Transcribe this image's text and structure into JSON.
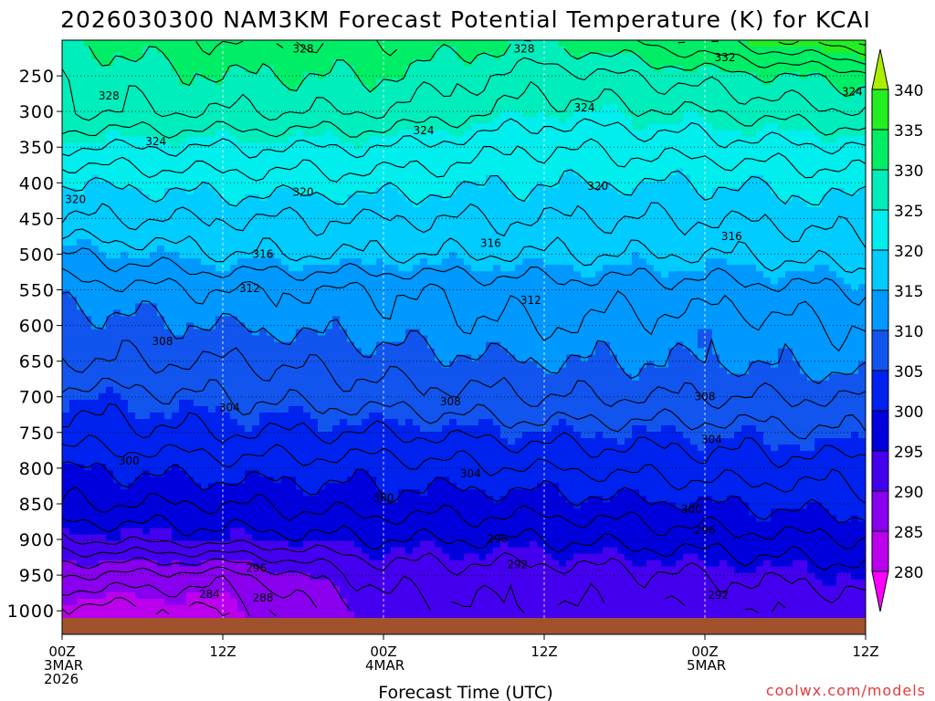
{
  "chart_data": {
    "type": "heatmap",
    "title": "2026030300 NAM3KM Forecast Potential Temperature (K) for KCAI",
    "xlabel": "Forecast Time (UTC)",
    "ylabel": "",
    "credit": "coolwx.com/models",
    "x_ticks": [
      {
        "hour": 0,
        "lines": [
          "00Z",
          "3MAR",
          "2026"
        ]
      },
      {
        "hour": 12,
        "lines": [
          "12Z"
        ]
      },
      {
        "hour": 24,
        "lines": [
          "00Z",
          "4MAR"
        ]
      },
      {
        "hour": 36,
        "lines": [
          "12Z"
        ]
      },
      {
        "hour": 48,
        "lines": [
          "00Z",
          "5MAR"
        ]
      },
      {
        "hour": 60,
        "lines": [
          "12Z"
        ]
      }
    ],
    "xlim_hours": [
      0,
      60
    ],
    "y_ticks": [
      250,
      300,
      350,
      400,
      450,
      500,
      550,
      600,
      650,
      700,
      750,
      800,
      850,
      900,
      950,
      1000
    ],
    "ylim_hpa": [
      200,
      1010
    ],
    "colorbar": {
      "levels": [
        280,
        285,
        290,
        295,
        300,
        305,
        310,
        315,
        320,
        325,
        330,
        335,
        340
      ],
      "colors": [
        "#ff00ff",
        "#bb00ee",
        "#8800ee",
        "#4400ee",
        "#0000dd",
        "#0022ee",
        "#1155ee",
        "#0099ff",
        "#00ccff",
        "#00eeee",
        "#00eebb",
        "#00ee66",
        "#22ee22",
        "#aaee00"
      ]
    },
    "isentrope_profiles": [
      {
        "hour": 0,
        "theta": [
          {
            "p": 1000,
            "k": 283
          },
          {
            "p": 950,
            "k": 288
          },
          {
            "p": 900,
            "k": 294
          },
          {
            "p": 850,
            "k": 298
          },
          {
            "p": 800,
            "k": 300
          },
          {
            "p": 750,
            "k": 303
          },
          {
            "p": 700,
            "k": 305
          },
          {
            "p": 650,
            "k": 308
          },
          {
            "p": 600,
            "k": 309
          },
          {
            "p": 550,
            "k": 311
          },
          {
            "p": 500,
            "k": 314
          },
          {
            "p": 450,
            "k": 318
          },
          {
            "p": 400,
            "k": 320
          },
          {
            "p": 350,
            "k": 324
          },
          {
            "p": 300,
            "k": 328
          },
          {
            "p": 250,
            "k": 328
          },
          {
            "p": 200,
            "k": 330
          }
        ]
      },
      {
        "hour": 12,
        "theta": [
          {
            "p": 1000,
            "k": 284
          },
          {
            "p": 950,
            "k": 287
          },
          {
            "p": 900,
            "k": 295
          },
          {
            "p": 850,
            "k": 298
          },
          {
            "p": 800,
            "k": 301
          },
          {
            "p": 750,
            "k": 304
          },
          {
            "p": 700,
            "k": 306
          },
          {
            "p": 650,
            "k": 308
          },
          {
            "p": 600,
            "k": 310
          },
          {
            "p": 550,
            "k": 312
          },
          {
            "p": 500,
            "k": 316
          },
          {
            "p": 450,
            "k": 318
          },
          {
            "p": 400,
            "k": 321
          },
          {
            "p": 350,
            "k": 324
          },
          {
            "p": 300,
            "k": 328
          },
          {
            "p": 250,
            "k": 330
          },
          {
            "p": 200,
            "k": 332
          }
        ]
      },
      {
        "hour": 24,
        "theta": [
          {
            "p": 1000,
            "k": 291
          },
          {
            "p": 950,
            "k": 293
          },
          {
            "p": 900,
            "k": 296
          },
          {
            "p": 850,
            "k": 299
          },
          {
            "p": 800,
            "k": 301
          },
          {
            "p": 750,
            "k": 304
          },
          {
            "p": 700,
            "k": 307
          },
          {
            "p": 650,
            "k": 309
          },
          {
            "p": 600,
            "k": 311
          },
          {
            "p": 550,
            "k": 312
          },
          {
            "p": 500,
            "k": 316
          },
          {
            "p": 450,
            "k": 318
          },
          {
            "p": 400,
            "k": 321
          },
          {
            "p": 350,
            "k": 324
          },
          {
            "p": 300,
            "k": 328
          },
          {
            "p": 250,
            "k": 330
          },
          {
            "p": 200,
            "k": 332
          }
        ]
      },
      {
        "hour": 36,
        "theta": [
          {
            "p": 1000,
            "k": 292
          },
          {
            "p": 950,
            "k": 293
          },
          {
            "p": 900,
            "k": 296
          },
          {
            "p": 850,
            "k": 299
          },
          {
            "p": 800,
            "k": 302
          },
          {
            "p": 750,
            "k": 305
          },
          {
            "p": 700,
            "k": 308
          },
          {
            "p": 650,
            "k": 310
          },
          {
            "p": 600,
            "k": 312
          },
          {
            "p": 550,
            "k": 313
          },
          {
            "p": 500,
            "k": 316
          },
          {
            "p": 450,
            "k": 318
          },
          {
            "p": 400,
            "k": 320
          },
          {
            "p": 350,
            "k": 322
          },
          {
            "p": 300,
            "k": 325
          },
          {
            "p": 250,
            "k": 327
          },
          {
            "p": 200,
            "k": 330
          }
        ]
      },
      {
        "hour": 48,
        "theta": [
          {
            "p": 1000,
            "k": 292
          },
          {
            "p": 950,
            "k": 294
          },
          {
            "p": 900,
            "k": 297
          },
          {
            "p": 850,
            "k": 300
          },
          {
            "p": 800,
            "k": 303
          },
          {
            "p": 750,
            "k": 305
          },
          {
            "p": 700,
            "k": 308
          },
          {
            "p": 650,
            "k": 310
          },
          {
            "p": 600,
            "k": 311
          },
          {
            "p": 550,
            "k": 313
          },
          {
            "p": 500,
            "k": 316
          },
          {
            "p": 450,
            "k": 318
          },
          {
            "p": 400,
            "k": 320
          },
          {
            "p": 350,
            "k": 323
          },
          {
            "p": 300,
            "k": 326
          },
          {
            "p": 250,
            "k": 329
          },
          {
            "p": 200,
            "k": 334
          }
        ]
      },
      {
        "hour": 60,
        "theta": [
          {
            "p": 1000,
            "k": 293
          },
          {
            "p": 950,
            "k": 295
          },
          {
            "p": 900,
            "k": 298
          },
          {
            "p": 850,
            "k": 301
          },
          {
            "p": 800,
            "k": 303
          },
          {
            "p": 750,
            "k": 306
          },
          {
            "p": 700,
            "k": 308
          },
          {
            "p": 650,
            "k": 311
          },
          {
            "p": 600,
            "k": 312
          },
          {
            "p": 550,
            "k": 314
          },
          {
            "p": 500,
            "k": 317
          },
          {
            "p": 450,
            "k": 319
          },
          {
            "p": 400,
            "k": 321
          },
          {
            "p": 350,
            "k": 324
          },
          {
            "p": 300,
            "k": 328
          },
          {
            "p": 250,
            "k": 331
          },
          {
            "p": 200,
            "k": 338
          }
        ]
      }
    ],
    "contour_labels": [
      {
        "value": "328",
        "hour": 18,
        "p": 212
      },
      {
        "value": "328",
        "hour": 34.5,
        "p": 212
      },
      {
        "value": "332",
        "hour": 49.5,
        "p": 224
      },
      {
        "value": "328",
        "hour": 3.5,
        "p": 278
      },
      {
        "value": "324",
        "hour": 59,
        "p": 272
      },
      {
        "value": "324",
        "hour": 39,
        "p": 295
      },
      {
        "value": "324",
        "hour": 27,
        "p": 327
      },
      {
        "value": "324",
        "hour": 7,
        "p": 342
      },
      {
        "value": "320",
        "hour": 1,
        "p": 423
      },
      {
        "value": "320",
        "hour": 18,
        "p": 413
      },
      {
        "value": "320",
        "hour": 40,
        "p": 405
      },
      {
        "value": "316",
        "hour": 32,
        "p": 485
      },
      {
        "value": "316",
        "hour": 50,
        "p": 475
      },
      {
        "value": "316",
        "hour": 15,
        "p": 500
      },
      {
        "value": "312",
        "hour": 14,
        "p": 548
      },
      {
        "value": "312",
        "hour": 35,
        "p": 565
      },
      {
        "value": "308",
        "hour": 7.5,
        "p": 622
      },
      {
        "value": "308",
        "hour": 29,
        "p": 707
      },
      {
        "value": "308",
        "hour": 48,
        "p": 700
      },
      {
        "value": "304",
        "hour": 12.5,
        "p": 715
      },
      {
        "value": "304",
        "hour": 48.5,
        "p": 760
      },
      {
        "value": "304",
        "hour": 30.5,
        "p": 808
      },
      {
        "value": "300",
        "hour": 5,
        "p": 790
      },
      {
        "value": "300",
        "hour": 24,
        "p": 842
      },
      {
        "value": "300",
        "hour": 47,
        "p": 858
      },
      {
        "value": "296",
        "hour": 14.5,
        "p": 940
      },
      {
        "value": "296",
        "hour": 32.5,
        "p": 899
      },
      {
        "value": "296",
        "hour": 48,
        "p": 887
      },
      {
        "value": "292",
        "hour": 34,
        "p": 935
      },
      {
        "value": "292",
        "hour": 49,
        "p": 978
      },
      {
        "value": "284",
        "hour": 11,
        "p": 977
      },
      {
        "value": "288",
        "hour": 15,
        "p": 982
      }
    ]
  }
}
